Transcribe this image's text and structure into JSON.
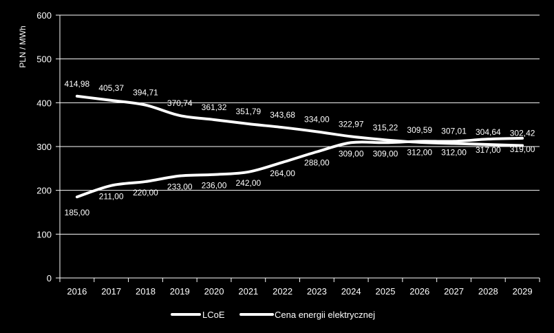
{
  "chart_data": {
    "type": "line",
    "ylabel": "PLN / MWh",
    "xlabel": "",
    "ylim": [
      0,
      600
    ],
    "yticks": [
      0,
      100,
      200,
      300,
      400,
      500,
      600
    ],
    "grid": true,
    "legend_position": "bottom",
    "categories": [
      "2016",
      "2017",
      "2018",
      "2019",
      "2020",
      "2021",
      "2022",
      "2023",
      "2024",
      "2025",
      "2026",
      "2027",
      "2028",
      "2029"
    ],
    "series": [
      {
        "name": "LCoE",
        "values": [
          414.98,
          405.37,
          394.71,
          370.74,
          361.32,
          351.79,
          343.68,
          334.0,
          322.97,
          315.22,
          309.59,
          307.01,
          304.64,
          302.42
        ],
        "labels": [
          "414,98",
          "405,37",
          "394,71",
          "370,74",
          "361,32",
          "351,79",
          "343,68",
          "334,00",
          "322,97",
          "315,22",
          "309,59",
          "307,01",
          "304,64",
          "302,42"
        ],
        "color": "#ffffff"
      },
      {
        "name": "Cena energii elektrycznej",
        "values": [
          185.0,
          211.0,
          220.0,
          233.0,
          236.0,
          242.0,
          264.0,
          288.0,
          309.0,
          309.0,
          312.0,
          312.0,
          317.0,
          319.0
        ],
        "labels": [
          "185,00",
          "211,00",
          "220,00",
          "233,00",
          "236,00",
          "242,00",
          "264,00",
          "288,00",
          "309,00",
          "309,00",
          "312,00",
          "312,00",
          "317,00",
          "319,00"
        ],
        "color": "#ffffff"
      }
    ]
  }
}
